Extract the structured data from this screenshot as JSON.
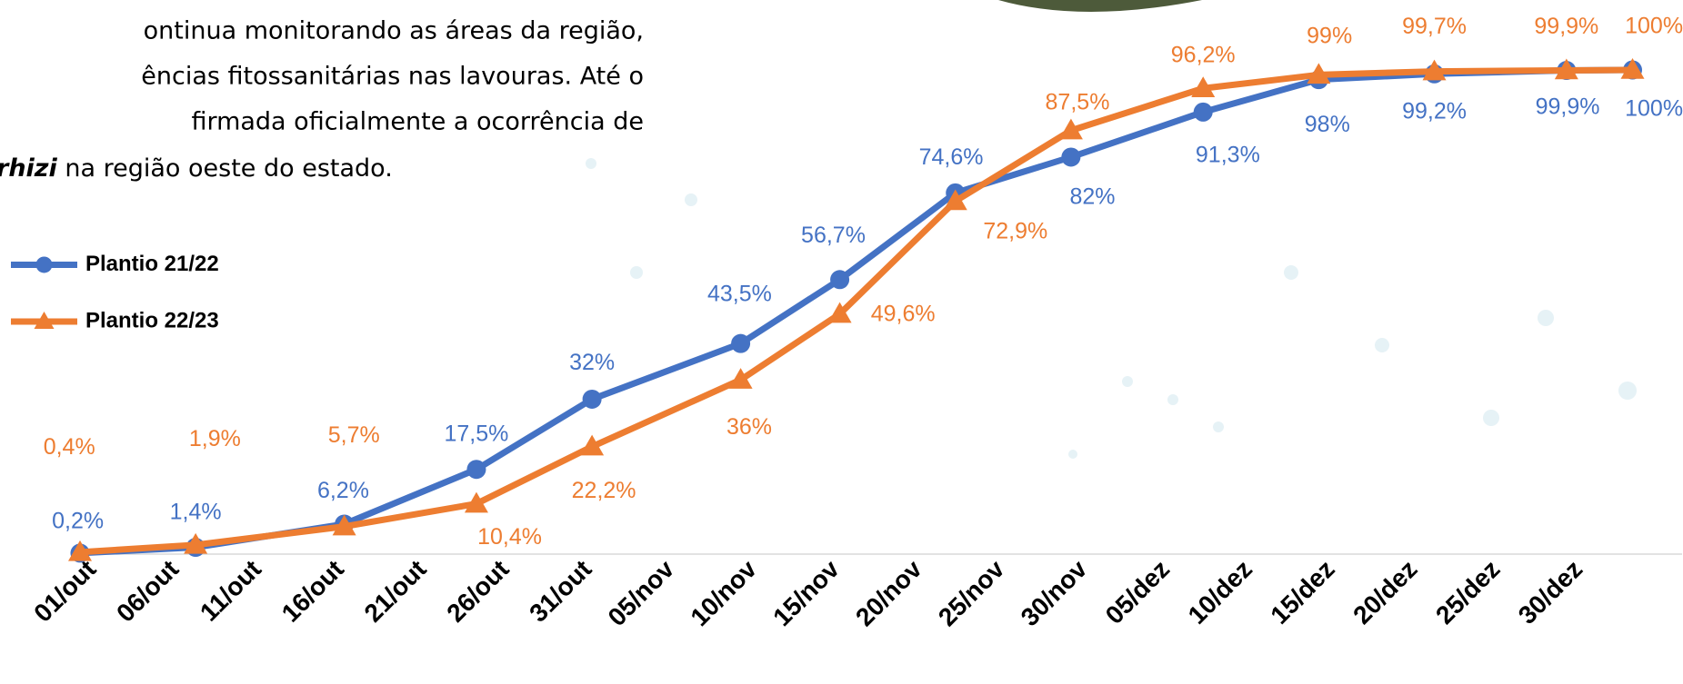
{
  "paragraph": {
    "lines": [
      "ontinua monitorando as áreas da região,",
      "ências fitossanitárias nas lavouras. Até o",
      "firmada oficialmente a ocorrência de"
    ],
    "last_line_bold": "rhizi",
    "last_line_rest": " na região oeste do estado."
  },
  "chart_data": {
    "type": "line",
    "x": [
      0,
      7,
      16,
      24,
      31,
      40,
      46,
      53,
      60,
      68,
      75,
      82,
      90,
      94
    ],
    "xlim": [
      0,
      97
    ],
    "xticks": [
      {
        "value": 0,
        "label": "01/out"
      },
      {
        "value": 5,
        "label": "06/out"
      },
      {
        "value": 10,
        "label": "11/out"
      },
      {
        "value": 15,
        "label": "16/out"
      },
      {
        "value": 20,
        "label": "21/out"
      },
      {
        "value": 25,
        "label": "26/out"
      },
      {
        "value": 30,
        "label": "31/out"
      },
      {
        "value": 35,
        "label": "05/nov"
      },
      {
        "value": 40,
        "label": "10/nov"
      },
      {
        "value": 45,
        "label": "15/nov"
      },
      {
        "value": 50,
        "label": "20/nov"
      },
      {
        "value": 55,
        "label": "25/nov"
      },
      {
        "value": 60,
        "label": "30/nov"
      },
      {
        "value": 65,
        "label": "05/dez"
      },
      {
        "value": 70,
        "label": "10/dez"
      },
      {
        "value": 75,
        "label": "15/dez"
      },
      {
        "value": 80,
        "label": "20/dez"
      },
      {
        "value": 85,
        "label": "25/dez"
      },
      {
        "value": 90,
        "label": "30/dez"
      }
    ],
    "ylim": [
      0,
      100
    ],
    "legend": "upper left",
    "series": [
      {
        "name": "Plantio 21/22",
        "color": "#4472c4",
        "marker": "circle",
        "values": [
          0.2,
          1.4,
          6.2,
          17.5,
          32,
          43.5,
          56.7,
          74.6,
          82,
          91.3,
          98,
          99.2,
          99.9,
          100
        ],
        "value_labels": [
          "0,2%",
          "1,4%",
          "6,2%",
          "17,5%",
          "32%",
          "43,5%",
          "56,7%",
          "74,6%",
          "82%",
          "91,3%",
          "98%",
          "99,2%",
          "99,9%",
          "100%"
        ]
      },
      {
        "name": "Plantio 22/23",
        "color": "#ed7d31",
        "marker": "triangle",
        "values": [
          0.4,
          1.9,
          5.7,
          10.4,
          22.2,
          36,
          49.6,
          72.9,
          87.5,
          96.2,
          99,
          99.7,
          99.9,
          100
        ],
        "value_labels": [
          "0,4%",
          "1,9%",
          "5,7%",
          "10,4%",
          "22,2%",
          "36%",
          "49,6%",
          "72,9%",
          "87,5%",
          "96,2%",
          "99%",
          "99,7%",
          "99,9%",
          "100%"
        ]
      }
    ]
  }
}
